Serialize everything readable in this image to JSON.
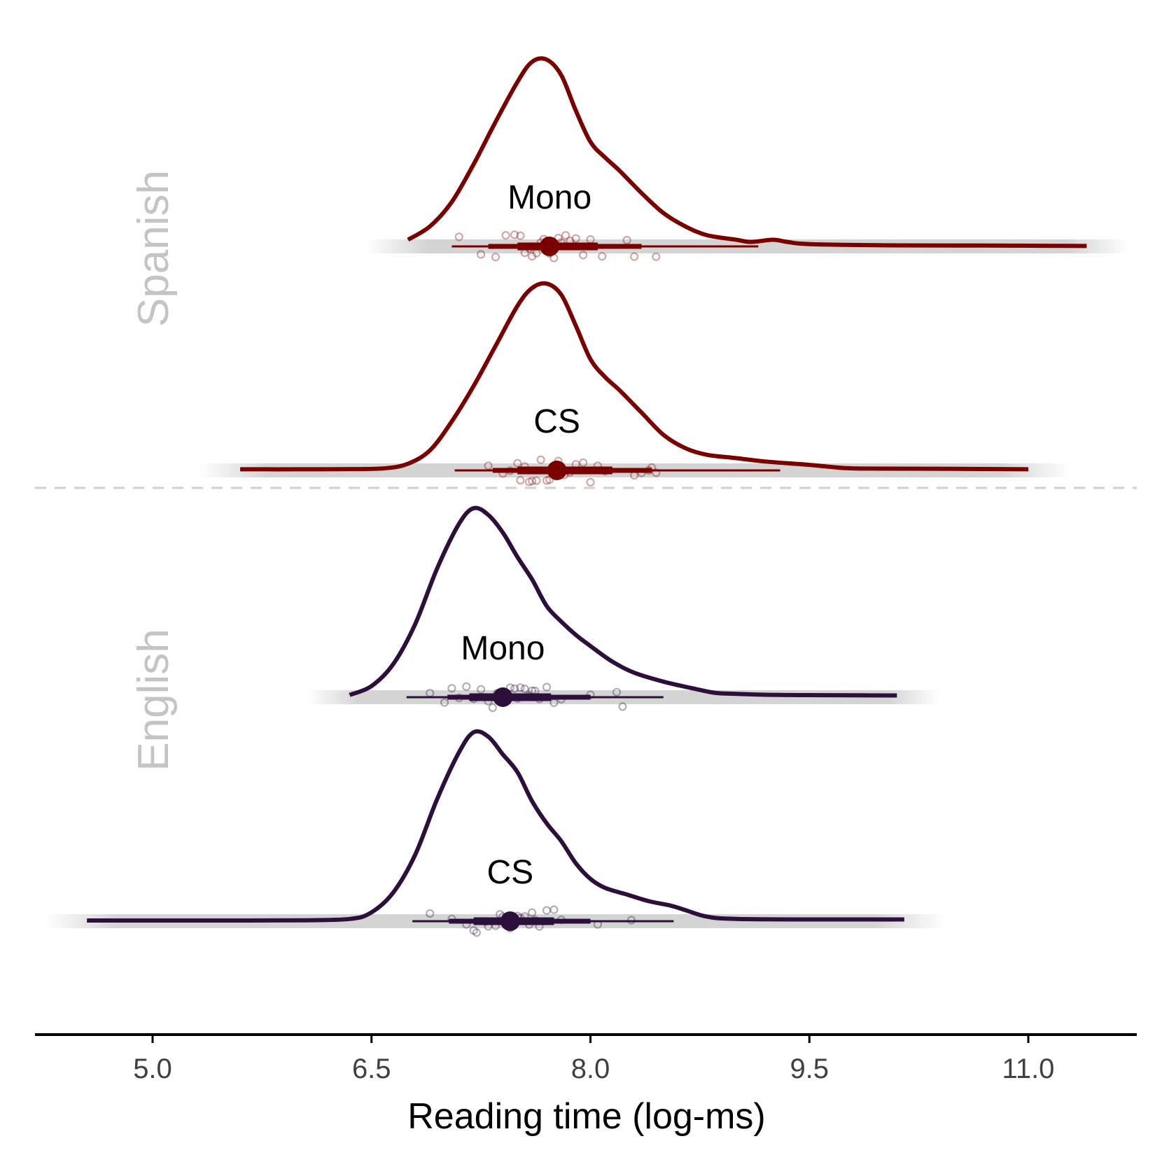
{
  "chart_data": {
    "type": "density-ridgeline",
    "title": "",
    "xlabel": "Reading time (log-ms)",
    "ylabel": "",
    "xlim": [
      4.2,
      11.75
    ],
    "x_ticks": [
      5.0,
      6.5,
      8.0,
      9.5,
      11.0
    ],
    "x_tick_labels": [
      "5.0",
      "6.5",
      "8.0",
      "9.5",
      "11.0"
    ],
    "grid": false,
    "legend": "none",
    "groups": [
      {
        "name": "Spanish",
        "color": "#7a0000",
        "series": [
          {
            "name": "Mono",
            "density": [
              [
                6.75,
                0.03
              ],
              [
                6.9,
                0.09
              ],
              [
                7.05,
                0.2
              ],
              [
                7.2,
                0.37
              ],
              [
                7.35,
                0.56
              ],
              [
                7.5,
                0.74
              ],
              [
                7.6,
                0.83
              ],
              [
                7.7,
                0.84
              ],
              [
                7.8,
                0.77
              ],
              [
                7.9,
                0.61
              ],
              [
                8.0,
                0.47
              ],
              [
                8.1,
                0.4
              ],
              [
                8.2,
                0.34
              ],
              [
                8.35,
                0.24
              ],
              [
                8.5,
                0.15
              ],
              [
                8.65,
                0.09
              ],
              [
                8.8,
                0.05
              ],
              [
                9.0,
                0.03
              ],
              [
                9.1,
                0.02
              ],
              [
                9.25,
                0.03
              ],
              [
                9.35,
                0.02
              ],
              [
                9.5,
                0.01
              ],
              [
                10.0,
                0.005
              ],
              [
                10.5,
                0.004
              ],
              [
                11.0,
                0.003
              ],
              [
                11.4,
                0.002
              ]
            ],
            "mean": 7.72,
            "interval_inner": [
              7.5,
              8.05
            ],
            "interval_mid": [
              7.3,
              8.35
            ],
            "interval_outer": [
              7.05,
              9.15
            ],
            "points": [
              7.1,
              7.25,
              7.35,
              7.42,
              7.48,
              7.52,
              7.55,
              7.58,
              7.6,
              7.63,
              7.66,
              7.68,
              7.7,
              7.72,
              7.75,
              7.78,
              7.8,
              7.83,
              7.86,
              7.9,
              7.95,
              8.0,
              8.08,
              8.25,
              8.3,
              8.45
            ]
          },
          {
            "name": "CS",
            "density": [
              [
                5.6,
                0.005
              ],
              [
                6.0,
                0.005
              ],
              [
                6.4,
                0.006
              ],
              [
                6.6,
                0.01
              ],
              [
                6.75,
                0.03
              ],
              [
                6.9,
                0.09
              ],
              [
                7.05,
                0.22
              ],
              [
                7.2,
                0.38
              ],
              [
                7.35,
                0.56
              ],
              [
                7.5,
                0.74
              ],
              [
                7.6,
                0.82
              ],
              [
                7.7,
                0.84
              ],
              [
                7.8,
                0.79
              ],
              [
                7.9,
                0.65
              ],
              [
                8.0,
                0.5
              ],
              [
                8.1,
                0.42
              ],
              [
                8.2,
                0.36
              ],
              [
                8.35,
                0.26
              ],
              [
                8.5,
                0.16
              ],
              [
                8.65,
                0.1
              ],
              [
                8.8,
                0.07
              ],
              [
                9.0,
                0.055
              ],
              [
                9.2,
                0.04
              ],
              [
                9.5,
                0.025
              ],
              [
                9.75,
                0.01
              ],
              [
                10.0,
                0.008
              ],
              [
                10.5,
                0.007
              ],
              [
                11.0,
                0.005
              ]
            ],
            "mean": 7.77,
            "interval_inner": [
              7.5,
              8.15
            ],
            "interval_mid": [
              7.33,
              8.42
            ],
            "interval_outer": [
              7.07,
              9.3
            ],
            "points": [
              7.3,
              7.4,
              7.45,
              7.5,
              7.52,
              7.55,
              7.58,
              7.6,
              7.63,
              7.66,
              7.7,
              7.72,
              7.75,
              7.78,
              7.82,
              7.86,
              7.9,
              7.95,
              8.0,
              8.05,
              8.1,
              8.3,
              8.35,
              8.4,
              8.42,
              8.45
            ]
          }
        ]
      },
      {
        "name": "English",
        "color": "#2c0f3a",
        "series": [
          {
            "name": "Mono",
            "density": [
              [
                6.35,
                0.01
              ],
              [
                6.5,
                0.05
              ],
              [
                6.65,
                0.15
              ],
              [
                6.8,
                0.33
              ],
              [
                6.95,
                0.58
              ],
              [
                7.1,
                0.78
              ],
              [
                7.2,
                0.85
              ],
              [
                7.3,
                0.82
              ],
              [
                7.4,
                0.74
              ],
              [
                7.5,
                0.63
              ],
              [
                7.6,
                0.53
              ],
              [
                7.7,
                0.41
              ],
              [
                7.8,
                0.34
              ],
              [
                7.9,
                0.28
              ],
              [
                8.0,
                0.23
              ],
              [
                8.15,
                0.16
              ],
              [
                8.3,
                0.11
              ],
              [
                8.5,
                0.07
              ],
              [
                8.7,
                0.04
              ],
              [
                8.85,
                0.02
              ],
              [
                9.0,
                0.015
              ],
              [
                9.3,
                0.01
              ],
              [
                9.6,
                0.009
              ],
              [
                10.0,
                0.008
              ],
              [
                10.1,
                0.008
              ]
            ],
            "mean": 7.4,
            "interval_inner": [
              7.17,
              7.73
            ],
            "interval_mid": [
              7.02,
              8.0
            ],
            "interval_outer": [
              6.74,
              8.5
            ],
            "points": [
              6.9,
              7.0,
              7.05,
              7.1,
              7.15,
              7.2,
              7.25,
              7.3,
              7.33,
              7.36,
              7.4,
              7.42,
              7.45,
              7.48,
              7.5,
              7.52,
              7.55,
              7.58,
              7.6,
              7.62,
              7.65,
              7.7,
              7.75,
              7.8,
              8.0,
              8.18,
              8.22
            ]
          },
          {
            "name": "CS",
            "density": [
              [
                4.55,
                0.003
              ],
              [
                5.0,
                0.003
              ],
              [
                5.5,
                0.003
              ],
              [
                6.0,
                0.004
              ],
              [
                6.35,
                0.01
              ],
              [
                6.5,
                0.04
              ],
              [
                6.65,
                0.13
              ],
              [
                6.8,
                0.3
              ],
              [
                6.95,
                0.55
              ],
              [
                7.1,
                0.76
              ],
              [
                7.2,
                0.85
              ],
              [
                7.3,
                0.83
              ],
              [
                7.4,
                0.75
              ],
              [
                7.5,
                0.67
              ],
              [
                7.6,
                0.54
              ],
              [
                7.7,
                0.44
              ],
              [
                7.8,
                0.36
              ],
              [
                7.9,
                0.26
              ],
              [
                8.0,
                0.19
              ],
              [
                8.1,
                0.15
              ],
              [
                8.25,
                0.12
              ],
              [
                8.4,
                0.09
              ],
              [
                8.55,
                0.07
              ],
              [
                8.65,
                0.05
              ],
              [
                8.8,
                0.02
              ],
              [
                9.0,
                0.01
              ],
              [
                9.5,
                0.008
              ],
              [
                10.0,
                0.008
              ],
              [
                10.15,
                0.008
              ]
            ],
            "mean": 7.45,
            "interval_inner": [
              7.2,
              7.75
            ],
            "interval_mid": [
              7.03,
              8.0
            ],
            "interval_outer": [
              6.78,
              8.57
            ],
            "points": [
              6.9,
              7.05,
              7.15,
              7.2,
              7.22,
              7.28,
              7.3,
              7.35,
              7.38,
              7.4,
              7.42,
              7.45,
              7.48,
              7.5,
              7.52,
              7.55,
              7.58,
              7.6,
              7.62,
              7.65,
              7.7,
              7.75,
              7.8,
              8.05,
              8.28
            ]
          }
        ]
      }
    ]
  }
}
